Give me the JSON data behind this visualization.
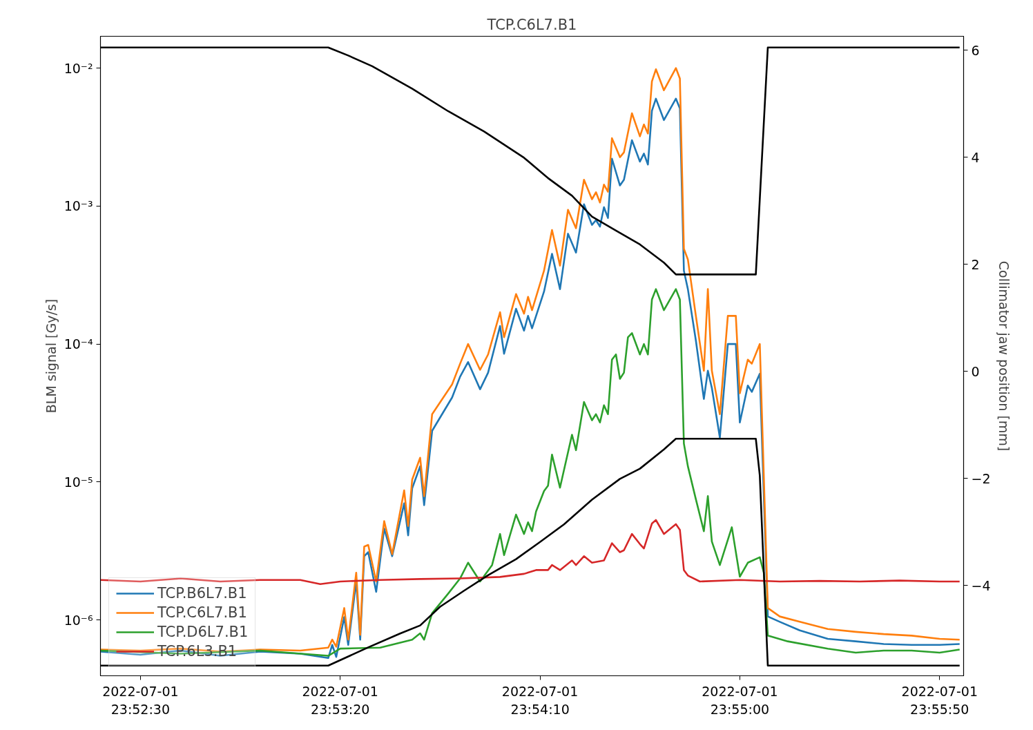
{
  "chart_data": {
    "type": "line",
    "title": "TCP.C6L7.B1",
    "ylabel": "BLM signal [Gy/s]",
    "y2label": "Collimator jaw position [mm]",
    "log": true,
    "legend": "bottom left",
    "xlim": [
      "2022-07-01T23:52:20",
      "2022-07-01T23:55:56"
    ],
    "xticks": [
      {
        "value": "2022-07-01T23:52:30",
        "label": "2022-07-01\n23:52:30"
      },
      {
        "value": "2022-07-01T23:53:20",
        "label": "2022-07-01\n23:53:20"
      },
      {
        "value": "2022-07-01T23:54:10",
        "label": "2022-07-01\n23:54:10"
      },
      {
        "value": "2022-07-01T23:55:00",
        "label": "2022-07-01\n23:55:00"
      },
      {
        "value": "2022-07-01T23:55:50",
        "label": "2022-07-01\n23:55:50"
      }
    ],
    "ylim": [
      3.94e-07,
      0.017
    ],
    "yticks": [
      {
        "value": 1e-06,
        "label": "10⁻⁶"
      },
      {
        "value": 1e-05,
        "label": "10⁻⁵"
      },
      {
        "value": 0.0001,
        "label": "10⁻⁴"
      },
      {
        "value": 0.001,
        "label": "10⁻³"
      },
      {
        "value": 0.01,
        "label": "10⁻²"
      }
    ],
    "y2lim": [
      -5.69,
      6.26
    ],
    "y2ticks": [
      {
        "value": -4,
        "label": "−4"
      },
      {
        "value": -2,
        "label": "−2"
      },
      0,
      2,
      4,
      6
    ],
    "x": [
      "2022-07-01T23:52:20",
      "2022-07-01T23:52:30",
      "2022-07-01T23:52:40",
      "2022-07-01T23:52:50",
      "2022-07-01T23:53:00",
      "2022-07-01T23:53:10",
      "2022-07-01T23:53:17",
      "2022-07-01T23:53:18",
      "2022-07-01T23:53:19",
      "2022-07-01T23:53:21",
      "2022-07-01T23:53:22",
      "2022-07-01T23:53:24",
      "2022-07-01T23:53:25",
      "2022-07-01T23:53:26",
      "2022-07-01T23:53:27",
      "2022-07-01T23:53:29",
      "2022-07-01T23:53:31",
      "2022-07-01T23:53:33",
      "2022-07-01T23:53:36",
      "2022-07-01T23:53:37",
      "2022-07-01T23:53:38",
      "2022-07-01T23:53:40",
      "2022-07-01T23:53:41",
      "2022-07-01T23:53:43",
      "2022-07-01T23:53:48",
      "2022-07-01T23:53:50",
      "2022-07-01T23:53:52",
      "2022-07-01T23:53:55",
      "2022-07-01T23:53:57",
      "2022-07-01T23:54:00",
      "2022-07-01T23:54:01",
      "2022-07-01T23:54:04",
      "2022-07-01T23:54:06",
      "2022-07-01T23:54:07",
      "2022-07-01T23:54:08",
      "2022-07-01T23:54:11",
      "2022-07-01T23:54:13",
      "2022-07-01T23:54:15",
      "2022-07-01T23:54:17",
      "2022-07-01T23:54:19",
      "2022-07-01T23:54:21",
      "2022-07-01T23:54:23",
      "2022-07-01T23:54:24",
      "2022-07-01T23:54:25",
      "2022-07-01T23:54:26",
      "2022-07-01T23:54:27",
      "2022-07-01T23:54:28",
      "2022-07-01T23:54:30",
      "2022-07-01T23:54:31",
      "2022-07-01T23:54:33",
      "2022-07-01T23:54:35",
      "2022-07-01T23:54:36",
      "2022-07-01T23:54:37",
      "2022-07-01T23:54:38",
      "2022-07-01T23:54:39",
      "2022-07-01T23:54:41",
      "2022-07-01T23:54:44",
      "2022-07-01T23:54:45",
      "2022-07-01T23:54:46",
      "2022-07-01T23:54:47",
      "2022-07-01T23:54:49",
      "2022-07-01T23:54:51",
      "2022-07-01T23:54:52",
      "2022-07-01T23:54:53",
      "2022-07-01T23:54:55",
      "2022-07-01T23:54:57",
      "2022-07-01T23:54:59",
      "2022-07-01T23:55:00",
      "2022-07-01T23:55:02",
      "2022-07-01T23:55:03",
      "2022-07-01T23:55:05",
      "2022-07-01T23:55:07",
      "2022-07-01T23:55:10",
      "2022-07-01T23:55:15",
      "2022-07-01T23:55:22",
      "2022-07-01T23:55:29",
      "2022-07-01T23:55:36",
      "2022-07-01T23:55:43",
      "2022-07-01T23:55:50",
      "2022-07-01T23:55:55"
    ],
    "series": [
      {
        "name": "TCP.B6L7.B1",
        "color": "#1f77b4",
        "values": [
          5.9e-07,
          5.6e-07,
          6e-07,
          5.5e-07,
          5.9e-07,
          5.7e-07,
          5.3e-07,
          6.6e-07,
          5.4e-07,
          1.05e-06,
          6.6e-07,
          1.9e-06,
          7.2e-07,
          2.9e-06,
          3.1e-06,
          1.6e-06,
          4.6e-06,
          2.9e-06,
          7e-06,
          4.1e-06,
          9e-06,
          1.3e-05,
          6.8e-06,
          2.35e-05,
          4.1e-05,
          5.8e-05,
          7.4e-05,
          4.7e-05,
          6.2e-05,
          0.000135,
          8.5e-05,
          0.00018,
          0.000125,
          0.00016,
          0.00013,
          0.00024,
          0.00045,
          0.00025,
          0.00063,
          0.00046,
          0.00103,
          0.00073,
          0.00079,
          0.00071,
          0.00098,
          0.00082,
          0.0022,
          0.00141,
          0.00155,
          0.003,
          0.0021,
          0.0024,
          0.002,
          0.0049,
          0.006,
          0.0042,
          0.006,
          0.0051,
          0.00034,
          0.00025,
          0.000106,
          4e-05,
          6.4e-05,
          4.8e-05,
          2.1e-05,
          0.0001,
          0.0001,
          2.7e-05,
          5e-05,
          4.5e-05,
          6.1e-05,
          1.06e-06,
          9.7e-07,
          8.4e-07,
          7.3e-07,
          7e-07,
          6.7e-07,
          6.6e-07,
          6.6e-07,
          6.7e-07
        ]
      },
      {
        "name": "TCP.C6L7.B1",
        "color": "#ff7f0e",
        "values": [
          6.1e-07,
          6e-07,
          6.2e-07,
          5.9e-07,
          6.1e-07,
          6e-07,
          6.3e-07,
          7.2e-07,
          6.4e-07,
          1.22e-06,
          7.2e-07,
          2.2e-06,
          7.8e-07,
          3.4e-06,
          3.5e-06,
          1.9e-06,
          5.2e-06,
          3e-06,
          8.7e-06,
          4.8e-06,
          1.04e-05,
          1.5e-05,
          7.9e-06,
          3.1e-05,
          5.1e-05,
          7.2e-05,
          0.0001,
          6.5e-05,
          8.4e-05,
          0.00017,
          0.000112,
          0.00023,
          0.000166,
          0.00022,
          0.000176,
          0.00034,
          0.00067,
          0.00037,
          0.00094,
          0.00069,
          0.00155,
          0.00112,
          0.00126,
          0.00106,
          0.00143,
          0.00127,
          0.0031,
          0.00226,
          0.00245,
          0.0047,
          0.0032,
          0.0039,
          0.00335,
          0.008,
          0.0098,
          0.0069,
          0.01,
          0.0084,
          0.00049,
          0.00041,
          0.00016,
          6.4e-05,
          0.00025,
          6.4e-05,
          3.1e-05,
          0.00016,
          0.00016,
          4.4e-05,
          7.7e-05,
          7.2e-05,
          0.0001,
          1.22e-06,
          1.06e-06,
          9.7e-07,
          8.6e-07,
          8.2e-07,
          7.9e-07,
          7.7e-07,
          7.3e-07,
          7.2e-07
        ]
      },
      {
        "name": "TCP.D6L7.B1",
        "color": "#2ca02c",
        "x": [
          "2022-07-01T23:52:20",
          "2022-07-01T23:52:40",
          "2022-07-01T23:53:00",
          "2022-07-01T23:53:17",
          "2022-07-01T23:53:20",
          "2022-07-01T23:53:30",
          "2022-07-01T23:53:38",
          "2022-07-01T23:53:40",
          "2022-07-01T23:53:41",
          "2022-07-01T23:53:43",
          "2022-07-01T23:53:47",
          "2022-07-01T23:53:50",
          "2022-07-01T23:53:52",
          "2022-07-01T23:53:55",
          "2022-07-01T23:53:58",
          "2022-07-01T23:54:00",
          "2022-07-01T23:54:01",
          "2022-07-01T23:54:04",
          "2022-07-01T23:54:06",
          "2022-07-01T23:54:07",
          "2022-07-01T23:54:08",
          "2022-07-01T23:54:09",
          "2022-07-01T23:54:11",
          "2022-07-01T23:54:12",
          "2022-07-01T23:54:13",
          "2022-07-01T23:54:15",
          "2022-07-01T23:54:18",
          "2022-07-01T23:54:19",
          "2022-07-01T23:54:21",
          "2022-07-01T23:54:23",
          "2022-07-01T23:54:24",
          "2022-07-01T23:54:25",
          "2022-07-01T23:54:26",
          "2022-07-01T23:54:27",
          "2022-07-01T23:54:28",
          "2022-07-01T23:54:29",
          "2022-07-01T23:54:30",
          "2022-07-01T23:54:31",
          "2022-07-01T23:54:32",
          "2022-07-01T23:54:33",
          "2022-07-01T23:54:35",
          "2022-07-01T23:54:36",
          "2022-07-01T23:54:37",
          "2022-07-01T23:54:38",
          "2022-07-01T23:54:39",
          "2022-07-01T23:54:41",
          "2022-07-01T23:54:44",
          "2022-07-01T23:54:45",
          "2022-07-01T23:54:46",
          "2022-07-01T23:54:47",
          "2022-07-01T23:54:49",
          "2022-07-01T23:54:51",
          "2022-07-01T23:54:52",
          "2022-07-01T23:54:53",
          "2022-07-01T23:54:55",
          "2022-07-01T23:54:58",
          "2022-07-01T23:55:00",
          "2022-07-01T23:55:02",
          "2022-07-01T23:55:05",
          "2022-07-01T23:55:06",
          "2022-07-01T23:55:07",
          "2022-07-01T23:55:12",
          "2022-07-01T23:55:22",
          "2022-07-01T23:55:29",
          "2022-07-01T23:55:36",
          "2022-07-01T23:55:43",
          "2022-07-01T23:55:50",
          "2022-07-01T23:55:55"
        ],
        "values": [
          6e-07,
          5.7e-07,
          6e-07,
          5.5e-07,
          6.2e-07,
          6.3e-07,
          7.2e-07,
          8e-07,
          7.2e-07,
          1.12e-06,
          1.55e-06,
          2e-06,
          2.6e-06,
          1.9e-06,
          2.5e-06,
          4.2e-06,
          2.95e-06,
          5.8e-06,
          4.2e-06,
          5.1e-06,
          4.4e-06,
          6.1e-06,
          8.6e-06,
          9.4e-06,
          1.58e-05,
          9.1e-06,
          2.2e-05,
          1.7e-05,
          3.8e-05,
          2.8e-05,
          3.1e-05,
          2.7e-05,
          3.6e-05,
          3.1e-05,
          7.7e-05,
          8.4e-05,
          5.6e-05,
          6.2e-05,
          0.000112,
          0.00012,
          8.4e-05,
          0.0001,
          8.4e-05,
          0.00021,
          0.00025,
          0.000176,
          0.00025,
          0.00021,
          1.9e-05,
          1.3e-05,
          7.5e-06,
          4.4e-06,
          7.9e-06,
          3.7e-06,
          2.5e-06,
          4.7e-06,
          2.06e-06,
          2.6e-06,
          2.85e-06,
          2.2e-06,
          7.7e-07,
          7e-07,
          6.2e-07,
          5.8e-07,
          6e-07,
          6e-07,
          5.8e-07,
          6.1e-07
        ]
      },
      {
        "name": "TCP.6L3.B1",
        "color": "#d62728",
        "x": [
          "2022-07-01T23:52:20",
          "2022-07-01T23:52:30",
          "2022-07-01T23:52:40",
          "2022-07-01T23:52:50",
          "2022-07-01T23:53:00",
          "2022-07-01T23:53:10",
          "2022-07-01T23:53:15",
          "2022-07-01T23:53:20",
          "2022-07-01T23:53:30",
          "2022-07-01T23:53:40",
          "2022-07-01T23:53:50",
          "2022-07-01T23:54:00",
          "2022-07-01T23:54:06",
          "2022-07-01T23:54:09",
          "2022-07-01T23:54:12",
          "2022-07-01T23:54:13",
          "2022-07-01T23:54:15",
          "2022-07-01T23:54:18",
          "2022-07-01T23:54:19",
          "2022-07-01T23:54:21",
          "2022-07-01T23:54:23",
          "2022-07-01T23:54:26",
          "2022-07-01T23:54:28",
          "2022-07-01T23:54:30",
          "2022-07-01T23:54:31",
          "2022-07-01T23:54:33",
          "2022-07-01T23:54:35",
          "2022-07-01T23:54:36",
          "2022-07-01T23:54:38",
          "2022-07-01T23:54:39",
          "2022-07-01T23:54:41",
          "2022-07-01T23:54:44",
          "2022-07-01T23:54:45",
          "2022-07-01T23:54:46",
          "2022-07-01T23:54:47",
          "2022-07-01T23:54:50",
          "2022-07-01T23:55:00",
          "2022-07-01T23:55:10",
          "2022-07-01T23:55:20",
          "2022-07-01T23:55:30",
          "2022-07-01T23:55:40",
          "2022-07-01T23:55:50",
          "2022-07-01T23:55:55"
        ],
        "values": [
          1.95e-06,
          1.9e-06,
          2e-06,
          1.9e-06,
          1.95e-06,
          1.95e-06,
          1.82e-06,
          1.9e-06,
          1.95e-06,
          1.98e-06,
          2e-06,
          2.05e-06,
          2.16e-06,
          2.3e-06,
          2.3e-06,
          2.5e-06,
          2.3e-06,
          2.7e-06,
          2.5e-06,
          2.9e-06,
          2.6e-06,
          2.7e-06,
          3.6e-06,
          3.1e-06,
          3.2e-06,
          4.2e-06,
          3.55e-06,
          3.3e-06,
          5e-06,
          5.3e-06,
          4.2e-06,
          4.95e-06,
          4.5e-06,
          2.3e-06,
          2.1e-06,
          1.9e-06,
          1.95e-06,
          1.9e-06,
          1.92e-06,
          1.9e-06,
          1.93e-06,
          1.9e-06,
          1.9e-06
        ]
      },
      {
        "color": "#000000",
        "axis": "y2",
        "x": [
          "2022-07-01T23:52:20",
          "2022-07-01T23:53:17",
          "2022-07-01T23:53:22",
          "2022-07-01T23:53:28",
          "2022-07-01T23:53:38",
          "2022-07-01T23:53:47",
          "2022-07-01T23:53:56",
          "2022-07-01T23:54:06",
          "2022-07-01T23:54:12",
          "2022-07-01T23:54:18",
          "2022-07-01T23:54:23",
          "2022-07-01T23:54:29",
          "2022-07-01T23:54:35",
          "2022-07-01T23:54:41",
          "2022-07-01T23:54:44",
          "2022-07-01T23:55:04",
          "2022-07-01T23:55:07",
          "2022-07-01T23:55:55"
        ],
        "values": [
          6.05,
          6.05,
          5.9,
          5.7,
          5.28,
          4.86,
          4.48,
          3.99,
          3.61,
          3.28,
          2.89,
          2.63,
          2.37,
          2.03,
          1.81,
          1.81,
          6.05,
          6.05
        ]
      },
      {
        "color": "#000000",
        "axis": "y2",
        "x": [
          "2022-07-01T23:52:20",
          "2022-07-01T23:53:17",
          "2022-07-01T23:53:27",
          "2022-07-01T23:53:35",
          "2022-07-01T23:53:40",
          "2022-07-01T23:53:45",
          "2022-07-01T23:53:51",
          "2022-07-01T23:53:57",
          "2022-07-01T23:54:04",
          "2022-07-01T23:54:10",
          "2022-07-01T23:54:16",
          "2022-07-01T23:54:23",
          "2022-07-01T23:54:30",
          "2022-07-01T23:54:35",
          "2022-07-01T23:54:41",
          "2022-07-01T23:54:44",
          "2022-07-01T23:55:04",
          "2022-07-01T23:55:05",
          "2022-07-01T23:55:07",
          "2022-07-01T23:55:55"
        ],
        "values": [
          -5.5,
          -5.5,
          -5.16,
          -4.9,
          -4.75,
          -4.4,
          -4.1,
          -3.81,
          -3.51,
          -3.19,
          -2.86,
          -2.4,
          -2.01,
          -1.82,
          -1.46,
          -1.26,
          -1.26,
          -1.95,
          -5.5,
          -5.5
        ]
      }
    ]
  }
}
